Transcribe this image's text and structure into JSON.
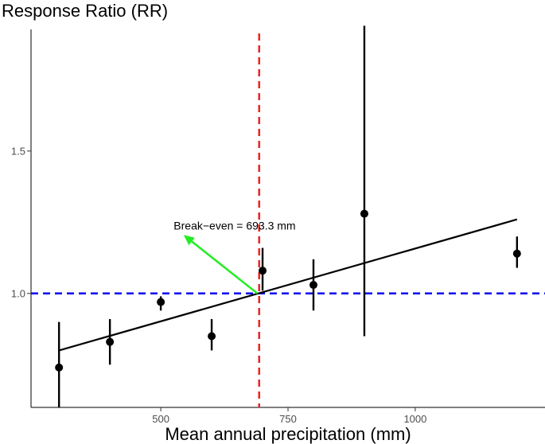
{
  "chart_data": {
    "type": "scatter",
    "title": "",
    "xlabel": "Mean annual precipitation (mm)",
    "ylabel": "Response Ratio (RR)",
    "xlim": [
      245,
      1255
    ],
    "ylim": [
      0.6,
      1.98
    ],
    "x_ticks": [
      500,
      750,
      1000
    ],
    "x_tick_labels": [
      "500",
      "750",
      "1000"
    ],
    "y_ticks": [
      1.0,
      1.5
    ],
    "y_tick_labels": [
      "1.0",
      "1.5"
    ],
    "grid": false,
    "legend": "none",
    "points": [
      {
        "x": 300,
        "y": 0.74,
        "lo": 0.6,
        "hi": 0.9
      },
      {
        "x": 400,
        "y": 0.83,
        "lo": 0.75,
        "hi": 0.91
      },
      {
        "x": 500,
        "y": 0.97,
        "lo": 0.94,
        "hi": 0.99
      },
      {
        "x": 600,
        "y": 0.85,
        "lo": 0.8,
        "hi": 0.91
      },
      {
        "x": 700,
        "y": 1.08,
        "lo": 1.01,
        "hi": 1.16
      },
      {
        "x": 800,
        "y": 1.03,
        "lo": 0.94,
        "hi": 1.12
      },
      {
        "x": 900,
        "y": 1.28,
        "lo": 0.85,
        "hi": 1.94
      },
      {
        "x": 1200,
        "y": 1.14,
        "lo": 1.09,
        "hi": 1.2
      }
    ],
    "regression_line": {
      "x": [
        300,
        1200
      ],
      "y": [
        0.8,
        1.26
      ],
      "color": "#000000"
    },
    "reference_lines": {
      "horizontal": {
        "y": 1.0,
        "color": "#0000ee",
        "style": "dashed"
      },
      "vertical": {
        "x": 693.3,
        "color": "#ee2222",
        "style": "dashed"
      }
    },
    "annotation": {
      "text": "Break−even = 693.3 mm",
      "arrow_from": [
        690,
        1.0
      ],
      "arrow_to": [
        545,
        1.205
      ],
      "label_anchor": [
        765,
        1.225
      ],
      "arrow_color": "#22ee22"
    }
  }
}
